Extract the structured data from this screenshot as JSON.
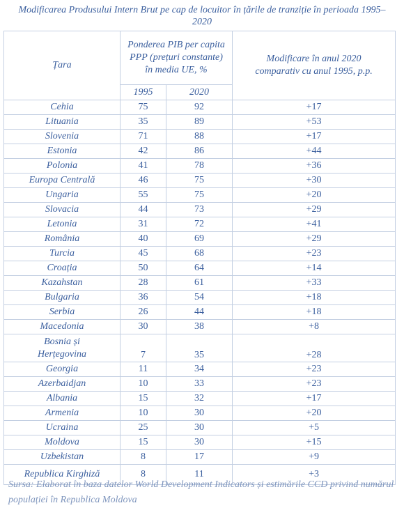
{
  "title": "Modificarea Produsului Intern Brut pe cap de locuitor în țările de tranziție în perioada 1995–2020",
  "table": {
    "headers": {
      "country": "Țara",
      "share": "Ponderea PIB per capita PPP (prețuri constante) în media UE, %",
      "change": "Modificare  în anul 2020 comparativ cu anul 1995, p.p.",
      "year1": "1995",
      "year2": "2020"
    },
    "rows": [
      [
        "Cehia",
        "75",
        "92",
        "+17"
      ],
      [
        "Lituania",
        "35",
        "89",
        "+53"
      ],
      [
        "Slovenia",
        "71",
        "88",
        "+17"
      ],
      [
        "Estonia",
        "42",
        "86",
        "+44"
      ],
      [
        "Polonia",
        "41",
        "78",
        "+36"
      ],
      [
        "Europa Centrală",
        "46",
        "75",
        "+30"
      ],
      [
        "Ungaria",
        "55",
        "75",
        "+20"
      ],
      [
        "Slovacia",
        "44",
        "73",
        "+29"
      ],
      [
        "Letonia",
        "31",
        "72",
        "+41"
      ],
      [
        "România",
        "40",
        "69",
        "+29"
      ],
      [
        "Turcia",
        "45",
        "68",
        "+23"
      ],
      [
        "Croația",
        "50",
        "64",
        "+14"
      ],
      [
        "Kazahstan",
        "28",
        "61",
        "+33"
      ],
      [
        "Bulgaria",
        "36",
        "54",
        "+18"
      ],
      [
        "Serbia",
        "26",
        "44",
        "+18"
      ],
      [
        "Macedonia",
        "30",
        "38",
        "+8"
      ],
      [
        "Bosnia și Herțegovina",
        "7",
        "35",
        "+28"
      ],
      [
        "Georgia",
        "11",
        "34",
        "+23"
      ],
      [
        "Azerbaidjan",
        "10",
        "33",
        "+23"
      ],
      [
        "Albania",
        "15",
        "32",
        "+17"
      ],
      [
        "Armenia",
        "10",
        "30",
        "+20"
      ],
      [
        "Ucraina",
        "25",
        "30",
        "+5"
      ],
      [
        "Moldova",
        "15",
        "30",
        "+15"
      ],
      [
        "Uzbekistan",
        "8",
        "17",
        "+9"
      ],
      [
        "Republica Kirghiză",
        "8",
        "11",
        "+3"
      ]
    ]
  },
  "source": "Sursa: Elaborat în baza datelor World Development Indicators și estimările CCD privind numărul populației în Republica Moldova"
}
